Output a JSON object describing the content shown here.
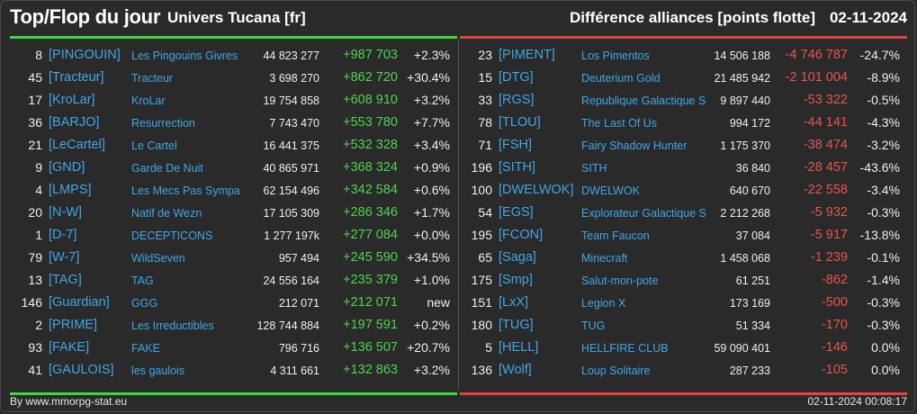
{
  "header": {
    "title": "Top/Flop du jour",
    "universe": "Univers Tucana [fr]",
    "metric": "Différence alliances [points flotte]",
    "date": "02-11-2024"
  },
  "colors": {
    "top_accent": "#3ed63e",
    "flop_accent": "#e0453e",
    "link": "#3fa7e8",
    "positive": "#4ed44e",
    "negative": "#e8544c"
  },
  "top": [
    {
      "rank": "8",
      "tag": "[PINGOUIN]",
      "name": "Les Pingouins Givres",
      "points": "44 823 277",
      "change": "+987 703",
      "pct": "+2.3%"
    },
    {
      "rank": "45",
      "tag": "[Tracteur]",
      "name": "Tracteur",
      "points": "3 698 270",
      "change": "+862 720",
      "pct": "+30.4%"
    },
    {
      "rank": "17",
      "tag": "[KroLar]",
      "name": "KroLar",
      "points": "19 754 858",
      "change": "+608 910",
      "pct": "+3.2%"
    },
    {
      "rank": "36",
      "tag": "[BARJO]",
      "name": "Resurrection",
      "points": "7 743 470",
      "change": "+553 780",
      "pct": "+7.7%"
    },
    {
      "rank": "21",
      "tag": "[LeCartel]",
      "name": "Le Cartel",
      "points": "16 441 375",
      "change": "+532 328",
      "pct": "+3.4%"
    },
    {
      "rank": "9",
      "tag": "[GND]",
      "name": "Garde De Nuit",
      "points": "40 865 971",
      "change": "+368 324",
      "pct": "+0.9%"
    },
    {
      "rank": "4",
      "tag": "[LMPS]",
      "name": "Les Mecs Pas Sympa",
      "points": "62 154 496",
      "change": "+342 584",
      "pct": "+0.6%"
    },
    {
      "rank": "20",
      "tag": "[N-W]",
      "name": "Natif de Wezn",
      "points": "17 105 309",
      "change": "+286 346",
      "pct": "+1.7%"
    },
    {
      "rank": "1",
      "tag": "[D-7]",
      "name": "DECEPTICONS",
      "points": "1 277 197k",
      "change": "+277 084",
      "pct": "+0.0%"
    },
    {
      "rank": "79",
      "tag": "[W-7]",
      "name": "WildSeven",
      "points": "957 494",
      "change": "+245 590",
      "pct": "+34.5%"
    },
    {
      "rank": "13",
      "tag": "[TAG]",
      "name": "TAG",
      "points": "24 556 164",
      "change": "+235 379",
      "pct": "+1.0%"
    },
    {
      "rank": "146",
      "tag": "[Guardian]",
      "name": "GGG",
      "points": "212 071",
      "change": "+212 071",
      "pct": "new"
    },
    {
      "rank": "2",
      "tag": "[PRIME]",
      "name": "Les Irreductibles",
      "points": "128 744 884",
      "change": "+197 591",
      "pct": "+0.2%"
    },
    {
      "rank": "93",
      "tag": "[FAKE]",
      "name": "FAKE",
      "points": "796 716",
      "change": "+136 507",
      "pct": "+20.7%"
    },
    {
      "rank": "41",
      "tag": "[GAULOIS]",
      "name": "les gaulois",
      "points": "4 311 661",
      "change": "+132 863",
      "pct": "+3.2%"
    }
  ],
  "flop": [
    {
      "rank": "23",
      "tag": "[PIMENT]",
      "name": "Los Pimentos",
      "points": "14 506 188",
      "change": "-4 746 787",
      "pct": "-24.7%"
    },
    {
      "rank": "15",
      "tag": "[DTG]",
      "name": "Deuterium Gold",
      "points": "21 485 942",
      "change": "-2 101 004",
      "pct": "-8.9%"
    },
    {
      "rank": "33",
      "tag": "[RGS]",
      "name": "Republique Galactique S",
      "points": "9 897 440",
      "change": "-53 322",
      "pct": "-0.5%"
    },
    {
      "rank": "78",
      "tag": "[TLOU]",
      "name": "The Last Of Us",
      "points": "994 172",
      "change": "-44 141",
      "pct": "-4.3%"
    },
    {
      "rank": "71",
      "tag": "[FSH]",
      "name": "Fairy Shadow Hunter",
      "points": "1 175 370",
      "change": "-38 474",
      "pct": "-3.2%"
    },
    {
      "rank": "196",
      "tag": "[SITH]",
      "name": "SITH",
      "points": "36 840",
      "change": "-28 457",
      "pct": "-43.6%"
    },
    {
      "rank": "100",
      "tag": "[DWELWOK]",
      "name": "DWELWOK",
      "points": "640 670",
      "change": "-22 558",
      "pct": "-3.4%"
    },
    {
      "rank": "54",
      "tag": "[EGS]",
      "name": "Explorateur Galactique S",
      "points": "2 212 268",
      "change": "-5 932",
      "pct": "-0.3%"
    },
    {
      "rank": "195",
      "tag": "[FCON]",
      "name": "Team Faucon",
      "points": "37 084",
      "change": "-5 917",
      "pct": "-13.8%"
    },
    {
      "rank": "65",
      "tag": "[Saga]",
      "name": "Minecraft",
      "points": "1 458 068",
      "change": "-1 239",
      "pct": "-0.1%"
    },
    {
      "rank": "175",
      "tag": "[Smp]",
      "name": "Salut-mon-pote",
      "points": "61 251",
      "change": "-862",
      "pct": "-1.4%"
    },
    {
      "rank": "151",
      "tag": "[LxX]",
      "name": "Legion X",
      "points": "173 169",
      "change": "-500",
      "pct": "-0.3%"
    },
    {
      "rank": "180",
      "tag": "[TUG]",
      "name": "TUG",
      "points": "51 334",
      "change": "-170",
      "pct": "-0.3%"
    },
    {
      "rank": "5",
      "tag": "[HELL]",
      "name": "HELLFIRE CLUB",
      "points": "59 090 401",
      "change": "-146",
      "pct": "0.0%"
    },
    {
      "rank": "136",
      "tag": "[Wolf]",
      "name": "Loup Solitaire",
      "points": "287 233",
      "change": "-105",
      "pct": "0.0%"
    }
  ],
  "footer": {
    "source": "By www.mmorpg-stat.eu",
    "timestamp": "02-11-2024 00:08:17"
  }
}
